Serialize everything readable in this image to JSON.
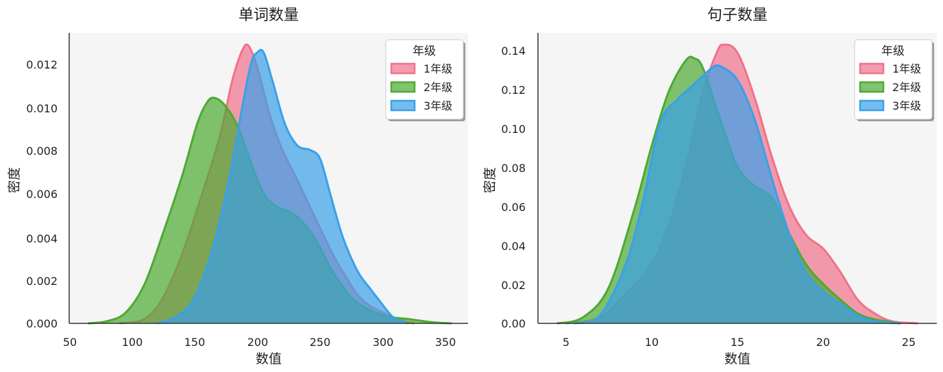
{
  "colors": {
    "grade1": "#f0728a",
    "grade2": "#4caa32",
    "grade3": "#3aa0e8",
    "plot_bg": "#f5f5f5",
    "axis": "#333333"
  },
  "chart_data": [
    {
      "type": "area",
      "title": "单词数量",
      "xlabel": "数值",
      "ylabel": "密度",
      "xlim": [
        50,
        368
      ],
      "ylim": [
        0,
        0.0134
      ],
      "xticks": [
        "50",
        "100",
        "150",
        "200",
        "250",
        "300",
        "350"
      ],
      "yticks": [
        "0.000",
        "0.002",
        "0.004",
        "0.006",
        "0.008",
        "0.010",
        "0.012"
      ],
      "grid": false,
      "legend": {
        "title": "年级",
        "position": "top-right"
      },
      "series": [
        {
          "name": "1年级",
          "color": "#f0728a",
          "points": [
            [
              90,
              0
            ],
            [
              110,
              0.0002
            ],
            [
              125,
              0.0012
            ],
            [
              140,
              0.0032
            ],
            [
              155,
              0.0058
            ],
            [
              170,
              0.0086
            ],
            [
              180,
              0.0112
            ],
            [
              188,
              0.0126
            ],
            [
              193,
              0.0128
            ],
            [
              200,
              0.0118
            ],
            [
              210,
              0.0096
            ],
            [
              220,
              0.008
            ],
            [
              232,
              0.0066
            ],
            [
              245,
              0.005
            ],
            [
              260,
              0.0032
            ],
            [
              270,
              0.0022
            ],
            [
              280,
              0.0013
            ],
            [
              290,
              0.0008
            ],
            [
              300,
              0.0005
            ],
            [
              310,
              0.0002
            ],
            [
              325,
              0
            ]
          ]
        },
        {
          "name": "2年级",
          "color": "#4caa32",
          "points": [
            [
              65,
              0
            ],
            [
              80,
              0.0001
            ],
            [
              95,
              0.0005
            ],
            [
              110,
              0.0018
            ],
            [
              125,
              0.0042
            ],
            [
              140,
              0.0068
            ],
            [
              152,
              0.0092
            ],
            [
              160,
              0.0102
            ],
            [
              166,
              0.0104
            ],
            [
              175,
              0.01
            ],
            [
              185,
              0.009
            ],
            [
              195,
              0.0074
            ],
            [
              205,
              0.006
            ],
            [
              215,
              0.0054
            ],
            [
              230,
              0.005
            ],
            [
              245,
              0.004
            ],
            [
              260,
              0.0024
            ],
            [
              275,
              0.0012
            ],
            [
              290,
              0.0006
            ],
            [
              305,
              0.0003
            ],
            [
              320,
              0.0002
            ],
            [
              340,
              5e-05
            ],
            [
              355,
              0
            ]
          ]
        },
        {
          "name": "3年级",
          "color": "#3aa0e8",
          "points": [
            [
              120,
              0
            ],
            [
              135,
              0.0003
            ],
            [
              150,
              0.0012
            ],
            [
              165,
              0.0036
            ],
            [
              178,
              0.0068
            ],
            [
              188,
              0.01
            ],
            [
              195,
              0.012
            ],
            [
              200,
              0.0125
            ],
            [
              205,
              0.0125
            ],
            [
              212,
              0.0112
            ],
            [
              222,
              0.0092
            ],
            [
              232,
              0.0082
            ],
            [
              242,
              0.008
            ],
            [
              250,
              0.0076
            ],
            [
              258,
              0.006
            ],
            [
              268,
              0.004
            ],
            [
              280,
              0.0024
            ],
            [
              290,
              0.0016
            ],
            [
              298,
              0.001
            ],
            [
              308,
              0.0003
            ],
            [
              320,
              0
            ]
          ]
        }
      ]
    },
    {
      "type": "area",
      "title": "句子数量",
      "xlabel": "数值",
      "ylabel": "密度",
      "xlim": [
        3.4,
        26.6
      ],
      "ylim": [
        0,
        0.148
      ],
      "xticks": [
        "5",
        "10",
        "15",
        "20",
        "25"
      ],
      "yticks": [
        "0.00",
        "0.02",
        "0.04",
        "0.06",
        "0.08",
        "0.10",
        "0.12",
        "0.14"
      ],
      "grid": false,
      "legend": {
        "title": "年级",
        "position": "top-right"
      },
      "series": [
        {
          "name": "1年级",
          "color": "#f0728a",
          "points": [
            [
              5,
              0
            ],
            [
              7,
              0.003
            ],
            [
              8.5,
              0.015
            ],
            [
              10,
              0.03
            ],
            [
              11,
              0.05
            ],
            [
              12,
              0.08
            ],
            [
              13,
              0.118
            ],
            [
              13.8,
              0.138
            ],
            [
              14.2,
              0.142
            ],
            [
              15,
              0.138
            ],
            [
              16,
              0.115
            ],
            [
              17,
              0.085
            ],
            [
              18,
              0.06
            ],
            [
              19,
              0.045
            ],
            [
              20,
              0.038
            ],
            [
              21,
              0.026
            ],
            [
              22,
              0.012
            ],
            [
              23,
              0.005
            ],
            [
              24,
              0.001
            ],
            [
              25.5,
              0
            ]
          ]
        },
        {
          "name": "2年级",
          "color": "#4caa32",
          "points": [
            [
              4.5,
              0
            ],
            [
              6,
              0.003
            ],
            [
              7.5,
              0.018
            ],
            [
              9,
              0.058
            ],
            [
              10,
              0.09
            ],
            [
              11,
              0.118
            ],
            [
              12,
              0.134
            ],
            [
              12.5,
              0.135
            ],
            [
              13,
              0.13
            ],
            [
              14,
              0.104
            ],
            [
              15,
              0.08
            ],
            [
              16,
              0.07
            ],
            [
              17,
              0.064
            ],
            [
              18,
              0.046
            ],
            [
              19,
              0.03
            ],
            [
              20,
              0.02
            ],
            [
              21,
              0.012
            ],
            [
              22,
              0.005
            ],
            [
              23,
              0.002
            ],
            [
              24.5,
              0
            ]
          ]
        },
        {
          "name": "3年级",
          "color": "#3aa0e8",
          "points": [
            [
              5.5,
              0
            ],
            [
              7,
              0.004
            ],
            [
              8.5,
              0.03
            ],
            [
              9.5,
              0.062
            ],
            [
              10.5,
              0.102
            ],
            [
              11.5,
              0.114
            ],
            [
              12.5,
              0.122
            ],
            [
              13.5,
              0.13
            ],
            [
              14,
              0.131
            ],
            [
              15,
              0.124
            ],
            [
              16,
              0.104
            ],
            [
              17,
              0.074
            ],
            [
              18,
              0.046
            ],
            [
              19,
              0.026
            ],
            [
              20,
              0.016
            ],
            [
              21,
              0.01
            ],
            [
              22,
              0.004
            ],
            [
              23,
              0.001
            ],
            [
              24.5,
              0
            ]
          ]
        }
      ]
    }
  ]
}
